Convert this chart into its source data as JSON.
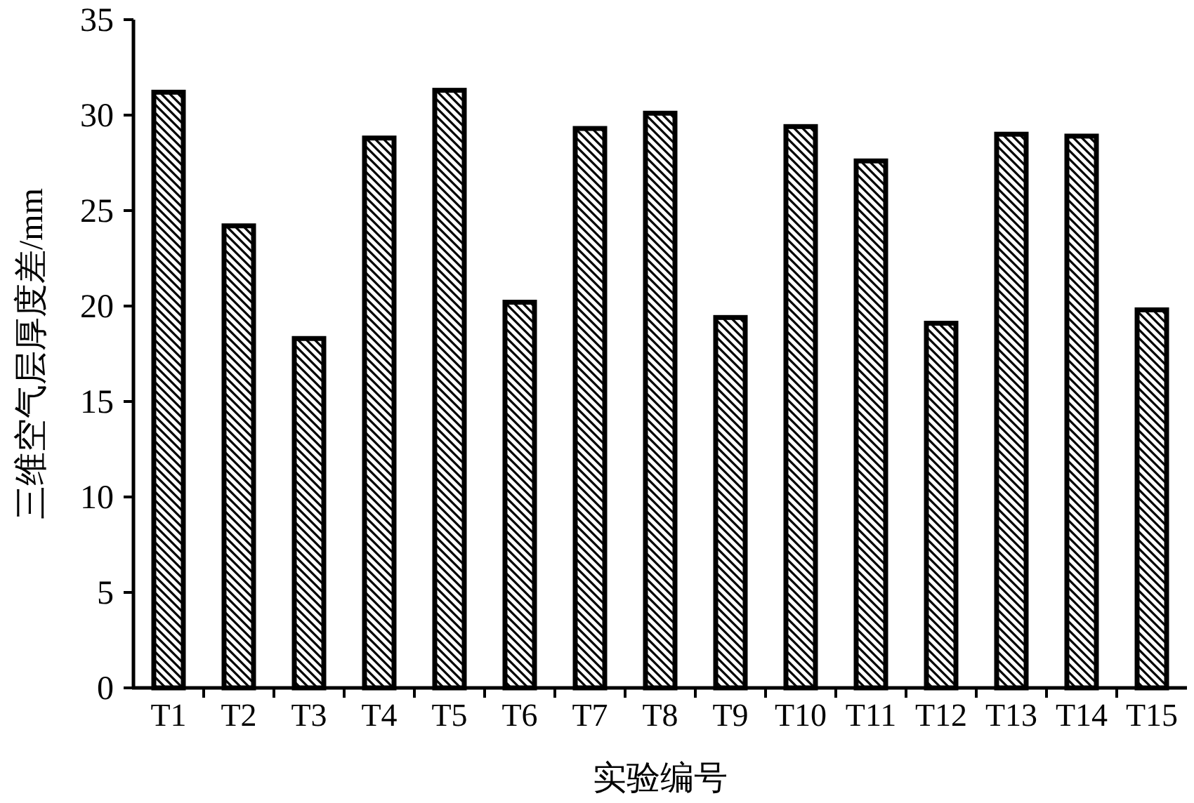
{
  "chart_data": {
    "type": "bar",
    "xlabel": "实验编号",
    "ylabel": "三维空气层厚度差/mm",
    "categories": [
      "T1",
      "T2",
      "T3",
      "T4",
      "T5",
      "T6",
      "T7",
      "T8",
      "T9",
      "T10",
      "T11",
      "T12",
      "T13",
      "T14",
      "T15"
    ],
    "values": [
      31.2,
      24.2,
      18.3,
      28.8,
      31.3,
      20.2,
      29.3,
      30.1,
      19.4,
      29.4,
      27.6,
      19.1,
      29.0,
      28.9,
      19.8
    ],
    "color": "#000000",
    "ylim": [
      0,
      35
    ],
    "yticks": [
      0,
      5,
      10,
      15,
      20,
      25,
      30,
      35
    ],
    "grid": false
  }
}
